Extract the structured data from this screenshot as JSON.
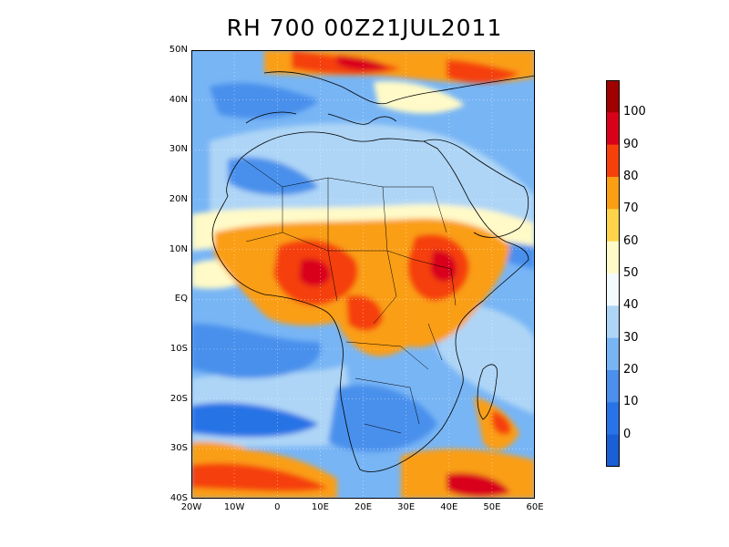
{
  "title": "RH 700 00Z21JUL2011",
  "map": {
    "lon_range": [
      -20,
      60
    ],
    "lat_range": [
      -40,
      50
    ],
    "lat_ticks": [
      "50N",
      "40N",
      "30N",
      "20N",
      "10N",
      "EQ",
      "10S",
      "20S",
      "30S",
      "40S"
    ],
    "lon_ticks": [
      "20W",
      "10W",
      "0",
      "10E",
      "20E",
      "30E",
      "40E",
      "50E",
      "60E"
    ]
  },
  "colorbar": {
    "labels": [
      "100",
      "90",
      "80",
      "70",
      "60",
      "50",
      "40",
      "30",
      "20",
      "10",
      "0"
    ],
    "colors": [
      "#a00000",
      "#d9001a",
      "#f5400a",
      "#fa9e14",
      "#ffd44a",
      "#fffac8",
      "#f4fbff",
      "#aed5f6",
      "#78b5f5",
      "#4a90ec",
      "#2873e6",
      "#1a5fd4"
    ]
  }
}
